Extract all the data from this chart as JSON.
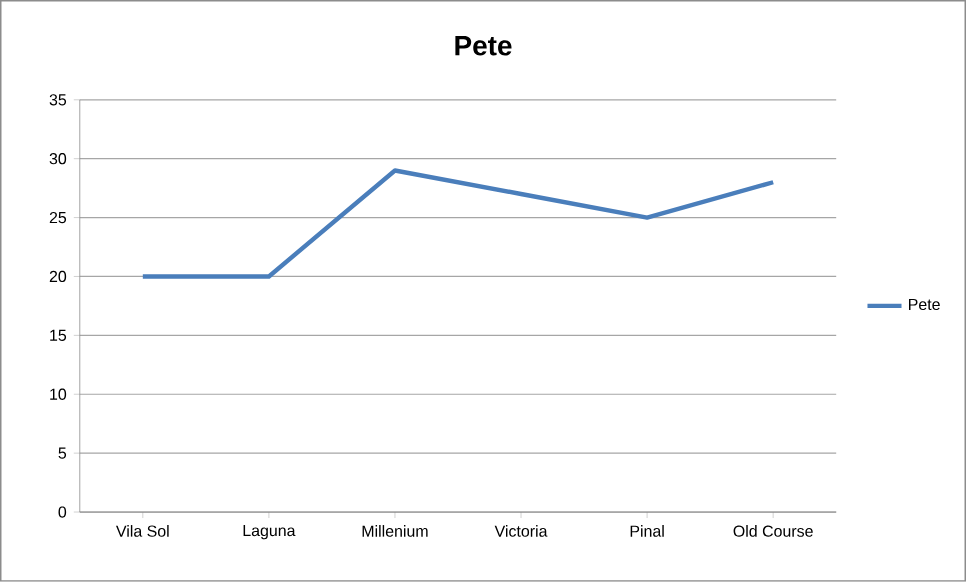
{
  "chart_data": {
    "type": "line",
    "title": "Pete",
    "categories": [
      "Vila Sol",
      "Laguna",
      "Millenium",
      "Victoria",
      "Pinal",
      "Old Course"
    ],
    "series": [
      {
        "name": "Pete",
        "color": "#4a7ebb",
        "values": [
          20,
          20,
          29,
          27,
          25,
          28
        ]
      }
    ],
    "ylim": [
      0,
      35
    ],
    "yticks": [
      0,
      5,
      10,
      15,
      20,
      25,
      30,
      35
    ],
    "grid": "y",
    "legend": "right",
    "marker": "none",
    "line_style": "solid"
  }
}
